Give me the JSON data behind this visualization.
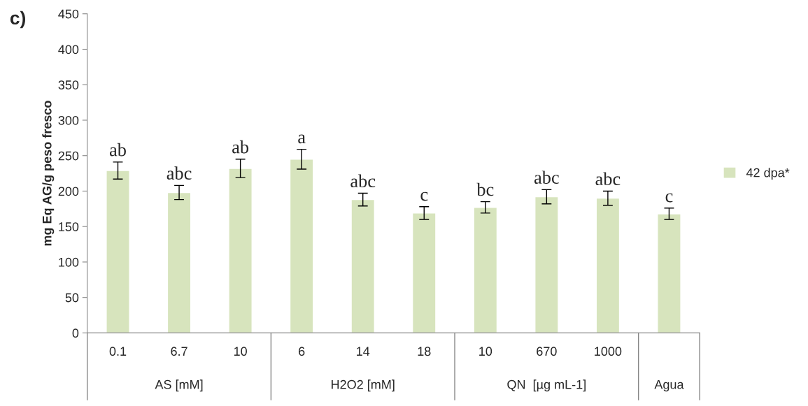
{
  "chart_data": {
    "type": "bar",
    "title": "c)",
    "ylabel": "mg Eq AG/g peso fresco",
    "categories": [
      "0.1",
      "6.7",
      "10",
      "6",
      "14",
      "18",
      "10",
      "670",
      "1000",
      null
    ],
    "series": [
      {
        "name": "42 dpa*",
        "color": "#d7e4bd",
        "values": [
          229,
          198,
          232,
          245,
          188,
          169,
          177,
          192,
          190,
          168
        ],
        "errors": [
          12,
          10,
          13,
          14,
          9,
          9,
          8,
          10,
          10,
          8
        ],
        "value_labels": [
          "ab",
          "abc",
          "ab",
          "a",
          "abc",
          "c",
          "bc",
          "abc",
          "abc",
          "c"
        ]
      }
    ],
    "annotations": [
      "AS [mM]",
      "H2O2 [mM]",
      "QN  [µg mL-1]",
      "Agua"
    ],
    "ylim": [
      0,
      450
    ],
    "yticks": [
      0,
      50,
      100,
      150,
      200,
      250,
      300,
      350,
      400,
      450
    ],
    "grid": false,
    "legend": "right"
  }
}
